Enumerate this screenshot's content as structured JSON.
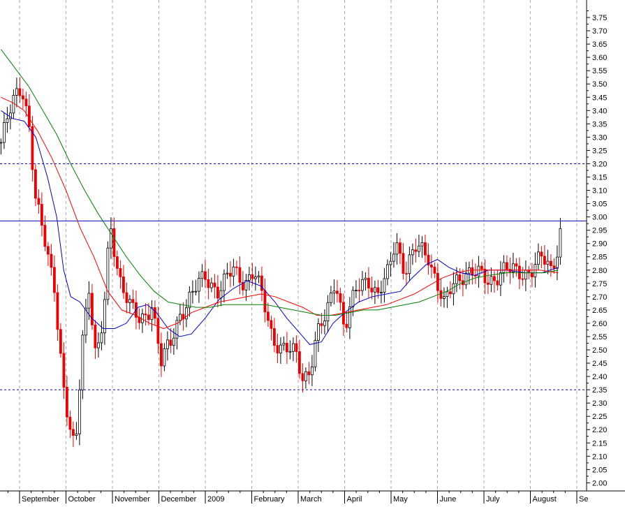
{
  "chart_data": {
    "type": "candlestick",
    "title": "",
    "xlabel": "",
    "ylabel": "",
    "ylim": [
      1.98,
      3.8
    ],
    "y_ticks": [
      "3.75",
      "3.70",
      "3.65",
      "3.60",
      "3.55",
      "3.50",
      "3.45",
      "3.40",
      "3.35",
      "3.30",
      "3.25",
      "3.20",
      "3.15",
      "3.10",
      "3.05",
      "3.00",
      "2.95",
      "2.90",
      "2.85",
      "2.80",
      "2.75",
      "2.70",
      "2.65",
      "2.60",
      "2.55",
      "2.50",
      "2.45",
      "2.40",
      "2.35",
      "2.30",
      "2.25",
      "2.20",
      "2.15",
      "2.10",
      "2.05",
      "2.00"
    ],
    "x_labels": [
      {
        "label": "September",
        "month_index": 0
      },
      {
        "label": "October",
        "month_index": 1
      },
      {
        "label": "November",
        "month_index": 2
      },
      {
        "label": "December",
        "month_index": 3
      },
      {
        "label": "2009",
        "month_index": 4
      },
      {
        "label": "February",
        "month_index": 5
      },
      {
        "label": "March",
        "month_index": 6
      },
      {
        "label": "April",
        "month_index": 7
      },
      {
        "label": "May",
        "month_index": 8
      },
      {
        "label": "June",
        "month_index": 9
      },
      {
        "label": "July",
        "month_index": 10
      },
      {
        "label": "August",
        "month_index": 11
      },
      {
        "label": "Se",
        "month_index": 12
      }
    ],
    "horizontal_levels": [
      {
        "value": 3.2,
        "style": "dashed",
        "color": "#0000cc"
      },
      {
        "value": 2.985,
        "style": "solid",
        "color": "#0000cc"
      },
      {
        "value": 2.35,
        "style": "dashed",
        "color": "#0000cc"
      }
    ],
    "price_path": [
      [
        -0.4,
        3.28
      ],
      [
        -0.1,
        3.45
      ],
      [
        0.05,
        3.5
      ],
      [
        0.2,
        3.36
      ],
      [
        0.35,
        3.05
      ],
      [
        0.55,
        2.9
      ],
      [
        0.75,
        2.75
      ],
      [
        0.95,
        2.35
      ],
      [
        1.05,
        2.22
      ],
      [
        1.2,
        2.1
      ],
      [
        1.35,
        2.55
      ],
      [
        1.5,
        2.75
      ],
      [
        1.65,
        2.45
      ],
      [
        1.8,
        2.6
      ],
      [
        1.95,
        2.97
      ],
      [
        2.15,
        2.78
      ],
      [
        2.4,
        2.65
      ],
      [
        2.6,
        2.6
      ],
      [
        2.85,
        2.68
      ],
      [
        3.05,
        2.45
      ],
      [
        3.25,
        2.52
      ],
      [
        3.45,
        2.64
      ],
      [
        3.7,
        2.7
      ],
      [
        4.0,
        2.78
      ],
      [
        4.3,
        2.72
      ],
      [
        4.6,
        2.8
      ],
      [
        4.85,
        2.76
      ],
      [
        5.05,
        2.79
      ],
      [
        5.25,
        2.68
      ],
      [
        5.45,
        2.55
      ],
      [
        5.7,
        2.5
      ],
      [
        5.95,
        2.48
      ],
      [
        6.1,
        2.4
      ],
      [
        6.25,
        2.43
      ],
      [
        6.4,
        2.55
      ],
      [
        6.6,
        2.62
      ],
      [
        6.8,
        2.78
      ],
      [
        7.0,
        2.58
      ],
      [
        7.25,
        2.72
      ],
      [
        7.5,
        2.78
      ],
      [
        7.7,
        2.7
      ],
      [
        7.9,
        2.76
      ],
      [
        8.1,
        2.92
      ],
      [
        8.3,
        2.8
      ],
      [
        8.55,
        2.88
      ],
      [
        8.8,
        2.86
      ],
      [
        9.0,
        2.75
      ],
      [
        9.15,
        2.66
      ],
      [
        9.35,
        2.75
      ],
      [
        9.6,
        2.8
      ],
      [
        9.85,
        2.78
      ],
      [
        10.1,
        2.76
      ],
      [
        10.4,
        2.8
      ],
      [
        10.7,
        2.79
      ],
      [
        11.0,
        2.8
      ],
      [
        11.25,
        2.84
      ],
      [
        11.45,
        2.8
      ],
      [
        11.6,
        2.9
      ],
      [
        11.67,
        2.98
      ]
    ],
    "series": [
      {
        "style": "moving-average",
        "color": "#0000cc",
        "points": [
          [
            -0.4,
            3.4
          ],
          [
            -0.15,
            3.37
          ],
          [
            0.1,
            3.36
          ],
          [
            0.35,
            3.3
          ],
          [
            0.6,
            3.15
          ],
          [
            0.8,
            3.0
          ],
          [
            0.95,
            2.8
          ],
          [
            1.1,
            2.7
          ],
          [
            1.3,
            2.68
          ],
          [
            1.55,
            2.62
          ],
          [
            1.8,
            2.58
          ],
          [
            2.05,
            2.58
          ],
          [
            2.3,
            2.6
          ],
          [
            2.55,
            2.66
          ],
          [
            2.75,
            2.67
          ],
          [
            2.95,
            2.64
          ],
          [
            3.2,
            2.58
          ],
          [
            3.45,
            2.55
          ],
          [
            3.7,
            2.56
          ],
          [
            4.0,
            2.62
          ],
          [
            4.3,
            2.69
          ],
          [
            4.6,
            2.73
          ],
          [
            4.9,
            2.76
          ],
          [
            5.2,
            2.74
          ],
          [
            5.5,
            2.68
          ],
          [
            5.75,
            2.62
          ],
          [
            6.0,
            2.57
          ],
          [
            6.25,
            2.52
          ],
          [
            6.5,
            2.53
          ],
          [
            6.75,
            2.6
          ],
          [
            7.0,
            2.64
          ],
          [
            7.3,
            2.68
          ],
          [
            7.6,
            2.7
          ],
          [
            7.9,
            2.71
          ],
          [
            8.2,
            2.72
          ],
          [
            8.45,
            2.77
          ],
          [
            8.75,
            2.82
          ],
          [
            9.0,
            2.84
          ],
          [
            9.25,
            2.81
          ],
          [
            9.5,
            2.79
          ],
          [
            9.8,
            2.78
          ],
          [
            10.1,
            2.8
          ],
          [
            10.5,
            2.8
          ],
          [
            10.9,
            2.79
          ],
          [
            11.25,
            2.79
          ],
          [
            11.6,
            2.81
          ]
        ]
      },
      {
        "style": "moving-average",
        "color": "#ff0000",
        "points": [
          [
            -0.4,
            3.45
          ],
          [
            -0.15,
            3.43
          ],
          [
            0.1,
            3.4
          ],
          [
            0.4,
            3.32
          ],
          [
            0.7,
            3.22
          ],
          [
            1.0,
            3.1
          ],
          [
            1.3,
            2.96
          ],
          [
            1.6,
            2.85
          ],
          [
            1.9,
            2.72
          ],
          [
            2.2,
            2.65
          ],
          [
            2.5,
            2.63
          ],
          [
            2.8,
            2.6
          ],
          [
            3.1,
            2.58
          ],
          [
            3.4,
            2.6
          ],
          [
            3.7,
            2.64
          ],
          [
            4.0,
            2.66
          ],
          [
            4.3,
            2.68
          ],
          [
            4.6,
            2.69
          ],
          [
            4.9,
            2.7
          ],
          [
            5.2,
            2.71
          ],
          [
            5.5,
            2.7
          ],
          [
            5.8,
            2.68
          ],
          [
            6.1,
            2.66
          ],
          [
            6.4,
            2.63
          ],
          [
            6.7,
            2.63
          ],
          [
            7.0,
            2.64
          ],
          [
            7.3,
            2.65
          ],
          [
            7.6,
            2.66
          ],
          [
            7.9,
            2.67
          ],
          [
            8.2,
            2.69
          ],
          [
            8.5,
            2.71
          ],
          [
            8.8,
            2.74
          ],
          [
            9.1,
            2.77
          ],
          [
            9.4,
            2.79
          ],
          [
            9.7,
            2.8
          ],
          [
            10.0,
            2.8
          ],
          [
            10.4,
            2.8
          ],
          [
            10.8,
            2.8
          ],
          [
            11.2,
            2.8
          ],
          [
            11.6,
            2.79
          ]
        ]
      },
      {
        "style": "moving-average",
        "color": "#008000",
        "points": [
          [
            -0.4,
            3.63
          ],
          [
            -0.1,
            3.56
          ],
          [
            0.2,
            3.49
          ],
          [
            0.5,
            3.4
          ],
          [
            0.8,
            3.31
          ],
          [
            1.1,
            3.2
          ],
          [
            1.4,
            3.1
          ],
          [
            1.7,
            3.01
          ],
          [
            2.0,
            2.93
          ],
          [
            2.3,
            2.85
          ],
          [
            2.6,
            2.78
          ],
          [
            2.9,
            2.72
          ],
          [
            3.2,
            2.68
          ],
          [
            3.5,
            2.67
          ],
          [
            3.8,
            2.66
          ],
          [
            4.1,
            2.66
          ],
          [
            4.4,
            2.67
          ],
          [
            4.7,
            2.67
          ],
          [
            5.0,
            2.67
          ],
          [
            5.3,
            2.67
          ],
          [
            5.6,
            2.66
          ],
          [
            5.9,
            2.65
          ],
          [
            6.2,
            2.64
          ],
          [
            6.5,
            2.63
          ],
          [
            6.8,
            2.63
          ],
          [
            7.1,
            2.64
          ],
          [
            7.4,
            2.65
          ],
          [
            7.7,
            2.65
          ],
          [
            8.0,
            2.66
          ],
          [
            8.3,
            2.67
          ],
          [
            8.6,
            2.68
          ],
          [
            8.9,
            2.7
          ],
          [
            9.2,
            2.72
          ],
          [
            9.5,
            2.75
          ],
          [
            9.8,
            2.77
          ],
          [
            10.1,
            2.78
          ],
          [
            10.5,
            2.79
          ],
          [
            10.9,
            2.79
          ],
          [
            11.3,
            2.79
          ],
          [
            11.6,
            2.8
          ]
        ]
      }
    ],
    "colors": {
      "up_candle": "#000000",
      "down_candle": "#ee0000",
      "month_gridline": "#aaaaaa",
      "axis": "#000000"
    },
    "grid": "vertical-dashed"
  }
}
